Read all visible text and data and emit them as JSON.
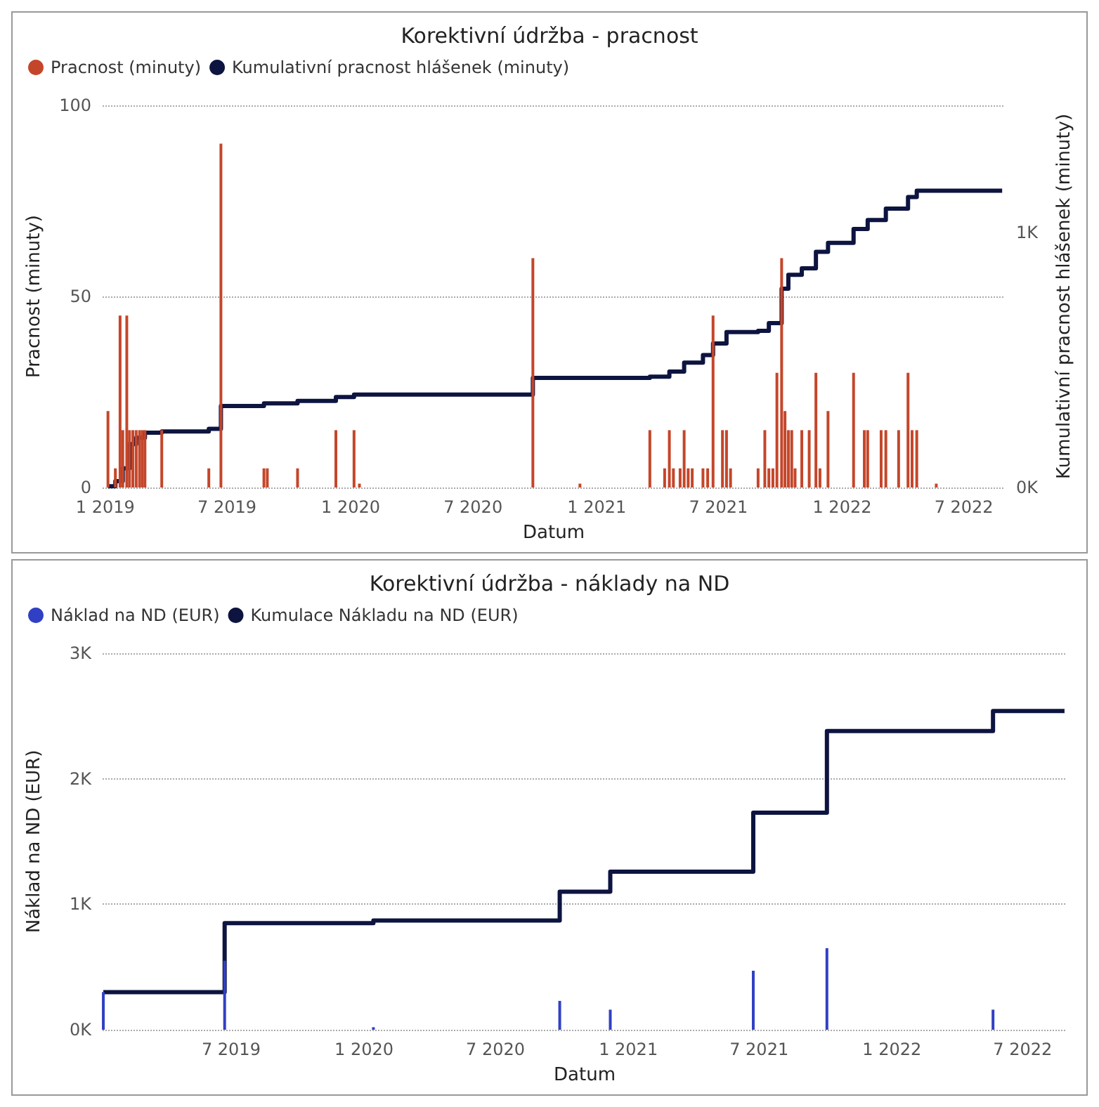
{
  "chart_data": [
    {
      "type": "bar",
      "title": "Korektivní údržba - pracnost",
      "xlabel": "Datum",
      "ylabel": "Pracnost (minuty)",
      "y2label": "Kumulativní pracnost hlášenek (minuty)",
      "xlim": [
        "2018-12-28",
        "2022-08-31"
      ],
      "xticks": [
        {
          "value": "2019-01",
          "label": "1 2019"
        },
        {
          "value": "2019-07",
          "label": "7 2019"
        },
        {
          "value": "2020-01",
          "label": "1 2020"
        },
        {
          "value": "2020-07",
          "label": "7 2020"
        },
        {
          "value": "2021-01",
          "label": "1 2021"
        },
        {
          "value": "2021-07",
          "label": "7 2021"
        },
        {
          "value": "2022-01",
          "label": "1 2022"
        },
        {
          "value": "2022-07",
          "label": "7 2022"
        }
      ],
      "ylim": [
        0,
        100
      ],
      "yticks": [
        0,
        50,
        100
      ],
      "y2lim": [
        0,
        1500
      ],
      "y2ticks": [
        {
          "value": 0,
          "label": "0K"
        },
        {
          "value": 1000,
          "label": "1K"
        }
      ],
      "grid": "y",
      "legend": "top left",
      "series": [
        {
          "name": "Pracnost (minuty)",
          "color": "#c4462a",
          "x": [
            "2019-01-05",
            "2019-01-16",
            "2019-01-23",
            "2019-01-27",
            "2019-02-02",
            "2019-02-06",
            "2019-02-11",
            "2019-02-16",
            "2019-02-21",
            "2019-02-25",
            "2019-03-01",
            "2019-03-26",
            "2019-06-04",
            "2019-06-22",
            "2019-08-25",
            "2019-08-30",
            "2019-10-14",
            "2019-12-10",
            "2020-01-06",
            "2020-01-14",
            "2020-09-28",
            "2020-12-07",
            "2021-03-21",
            "2021-04-12",
            "2021-04-19",
            "2021-04-25",
            "2021-05-05",
            "2021-05-11",
            "2021-05-17",
            "2021-05-23",
            "2021-06-08",
            "2021-06-15",
            "2021-06-23",
            "2021-07-07",
            "2021-07-13",
            "2021-07-19",
            "2021-08-29",
            "2021-09-08",
            "2021-09-14",
            "2021-09-20",
            "2021-09-26",
            "2021-10-03",
            "2021-10-08",
            "2021-10-13",
            "2021-10-18",
            "2021-10-23",
            "2021-11-02",
            "2021-11-13",
            "2021-11-23",
            "2021-11-29",
            "2021-12-11",
            "2022-01-18",
            "2022-02-03",
            "2022-02-08",
            "2022-02-28",
            "2022-03-07",
            "2022-03-26",
            "2022-04-09",
            "2022-04-15",
            "2022-04-22",
            "2022-05-21"
          ],
          "values": [
            20,
            5,
            45,
            15,
            45,
            15,
            15,
            15,
            15,
            15,
            15,
            15,
            5,
            90,
            5,
            5,
            5,
            15,
            15,
            1,
            60,
            1,
            15,
            5,
            15,
            5,
            5,
            15,
            5,
            5,
            5,
            5,
            45,
            15,
            15,
            5,
            5,
            15,
            5,
            5,
            30,
            60,
            20,
            15,
            15,
            5,
            15,
            15,
            30,
            5,
            20,
            30,
            15,
            15,
            15,
            15,
            15,
            30,
            15,
            15,
            1
          ]
        },
        {
          "name": "Kumulativní pracnost hlášenek (minuty)",
          "type": "step",
          "axis": "y2",
          "color": "#0d1440",
          "x": [
            "2019-01-05",
            "2019-01-16",
            "2019-01-27",
            "2019-02-06",
            "2019-02-16",
            "2019-03-01",
            "2019-03-26",
            "2019-06-04",
            "2019-06-22",
            "2019-08-25",
            "2019-10-14",
            "2019-12-10",
            "2020-01-06",
            "2020-09-28",
            "2021-03-21",
            "2021-04-19",
            "2021-05-11",
            "2021-06-08",
            "2021-06-23",
            "2021-07-13",
            "2021-08-29",
            "2021-09-14",
            "2021-10-03",
            "2021-10-13",
            "2021-11-02",
            "2021-11-23",
            "2021-12-11",
            "2022-01-18",
            "2022-02-08",
            "2022-03-07",
            "2022-04-09",
            "2022-04-22",
            "2022-08-27"
          ],
          "values": [
            5,
            25,
            75,
            170,
            195,
            215,
            220,
            230,
            320,
            330,
            340,
            355,
            365,
            430,
            435,
            455,
            490,
            520,
            565,
            610,
            615,
            645,
            780,
            835,
            860,
            925,
            960,
            1015,
            1050,
            1095,
            1140,
            1165,
            1165
          ]
        }
      ]
    },
    {
      "type": "bar",
      "title": "Korektivní údržba - náklady na ND",
      "xlabel": "Datum",
      "ylabel": "Náklad na ND (EUR)",
      "xlim": [
        "2019-01-04",
        "2022-08-31"
      ],
      "xticks": [
        {
          "value": "2019-07",
          "label": "7 2019"
        },
        {
          "value": "2020-01",
          "label": "1 2020"
        },
        {
          "value": "2020-07",
          "label": "7 2020"
        },
        {
          "value": "2021-01",
          "label": "1 2021"
        },
        {
          "value": "2021-07",
          "label": "7 2021"
        },
        {
          "value": "2022-01",
          "label": "1 2022"
        },
        {
          "value": "2022-07",
          "label": "7 2022"
        }
      ],
      "ylim": [
        0,
        3000
      ],
      "yticks": [
        {
          "value": 0,
          "label": "0K"
        },
        {
          "value": 1000,
          "label": "1K"
        },
        {
          "value": 2000,
          "label": "2K"
        },
        {
          "value": 3000,
          "label": "3K"
        }
      ],
      "grid": "y",
      "legend": "top left",
      "series": [
        {
          "name": "Náklad na ND (EUR)",
          "color": "#3040c4",
          "x": [
            "2019-01-05",
            "2019-06-22",
            "2020-01-14",
            "2020-09-28",
            "2020-12-07",
            "2021-06-23",
            "2021-10-03",
            "2022-05-21"
          ],
          "values": [
            300,
            550,
            20,
            230,
            160,
            470,
            650,
            160
          ]
        },
        {
          "name": "Kumulace Nákladu na ND (EUR)",
          "type": "step",
          "color": "#0d1440",
          "x": [
            "2019-01-05",
            "2019-06-22",
            "2020-01-14",
            "2020-09-28",
            "2020-12-07",
            "2021-06-23",
            "2021-10-03",
            "2022-05-21",
            "2022-08-28"
          ],
          "values": [
            300,
            850,
            870,
            1100,
            1260,
            1730,
            2380,
            2540,
            2540
          ]
        }
      ]
    }
  ]
}
